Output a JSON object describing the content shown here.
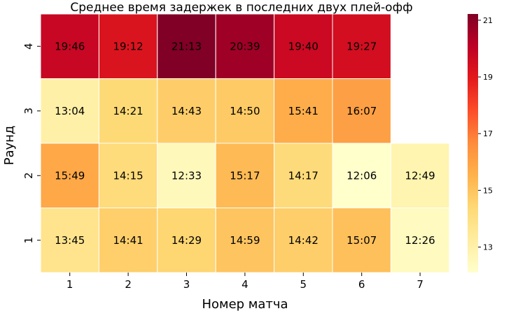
{
  "chart_data": {
    "type": "heatmap",
    "title": "Среднее время задержек в последних двух плей-офф",
    "xlabel": "Номер матча",
    "ylabel": "Раунд",
    "x_categories": [
      "1",
      "2",
      "3",
      "4",
      "5",
      "6",
      "7"
    ],
    "y_categories": [
      "4",
      "3",
      "2",
      "1"
    ],
    "rows": [
      {
        "round": "4",
        "labels": [
          "19:46",
          "19:12",
          "21:13",
          "20:39",
          "19:40",
          "19:27",
          null
        ],
        "values": [
          19.77,
          19.2,
          21.22,
          20.65,
          19.67,
          19.45,
          null
        ]
      },
      {
        "round": "3",
        "labels": [
          "13:04",
          "14:21",
          "14:43",
          "14:50",
          "15:41",
          "16:07",
          null
        ],
        "values": [
          13.07,
          14.35,
          14.72,
          14.83,
          15.68,
          16.12,
          null
        ]
      },
      {
        "round": "2",
        "labels": [
          "15:49",
          "14:15",
          "12:33",
          "15:17",
          "14:17",
          "12:06",
          "12:49"
        ],
        "values": [
          15.82,
          14.25,
          12.55,
          15.28,
          14.28,
          12.1,
          12.82
        ]
      },
      {
        "round": "1",
        "labels": [
          "13:45",
          "14:41",
          "14:29",
          "14:59",
          "14:42",
          "15:07",
          "12:26"
        ],
        "values": [
          13.75,
          14.68,
          14.48,
          14.98,
          14.7,
          15.12,
          12.43
        ]
      }
    ],
    "colorbar": {
      "cmap": "YlOrRd",
      "range": [
        12.1,
        21.22
      ],
      "ticks": [
        13,
        15,
        17,
        19,
        21
      ]
    },
    "grid": false
  }
}
